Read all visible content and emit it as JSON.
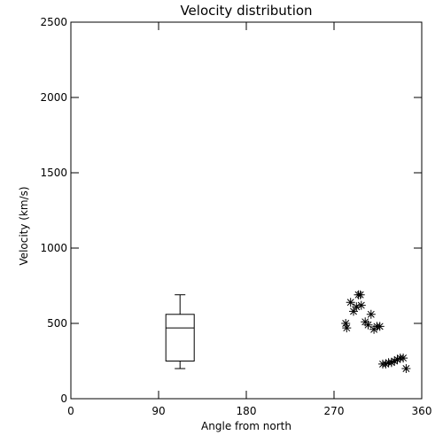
{
  "chart_data": {
    "type": "scatter",
    "title": "Velocity distribution",
    "xlabel": "Angle from north",
    "ylabel": "Velocity (km/s)",
    "xlim": [
      0,
      360
    ],
    "ylim": [
      0,
      2500
    ],
    "xticks": [
      0,
      90,
      180,
      270,
      360
    ],
    "yticks": [
      0,
      500,
      1000,
      1500,
      2000,
      2500
    ],
    "grid": false,
    "box": {
      "x": 112,
      "whisker_low": 200,
      "q1": 250,
      "median": 470,
      "q3": 560,
      "whisker_high": 690
    },
    "points": [
      {
        "x": 282,
        "y": 500
      },
      {
        "x": 283,
        "y": 470
      },
      {
        "x": 287,
        "y": 640
      },
      {
        "x": 290,
        "y": 580
      },
      {
        "x": 293,
        "y": 610
      },
      {
        "x": 295,
        "y": 690
      },
      {
        "x": 297,
        "y": 690
      },
      {
        "x": 298,
        "y": 620
      },
      {
        "x": 302,
        "y": 510
      },
      {
        "x": 305,
        "y": 490
      },
      {
        "x": 308,
        "y": 560
      },
      {
        "x": 311,
        "y": 460
      },
      {
        "x": 314,
        "y": 480
      },
      {
        "x": 317,
        "y": 480
      },
      {
        "x": 320,
        "y": 230
      },
      {
        "x": 323,
        "y": 230
      },
      {
        "x": 326,
        "y": 240
      },
      {
        "x": 329,
        "y": 240
      },
      {
        "x": 332,
        "y": 250
      },
      {
        "x": 335,
        "y": 260
      },
      {
        "x": 338,
        "y": 270
      },
      {
        "x": 341,
        "y": 270
      },
      {
        "x": 344,
        "y": 200
      }
    ],
    "colors": {
      "axes": "#000000",
      "background": "#ffffff"
    }
  }
}
